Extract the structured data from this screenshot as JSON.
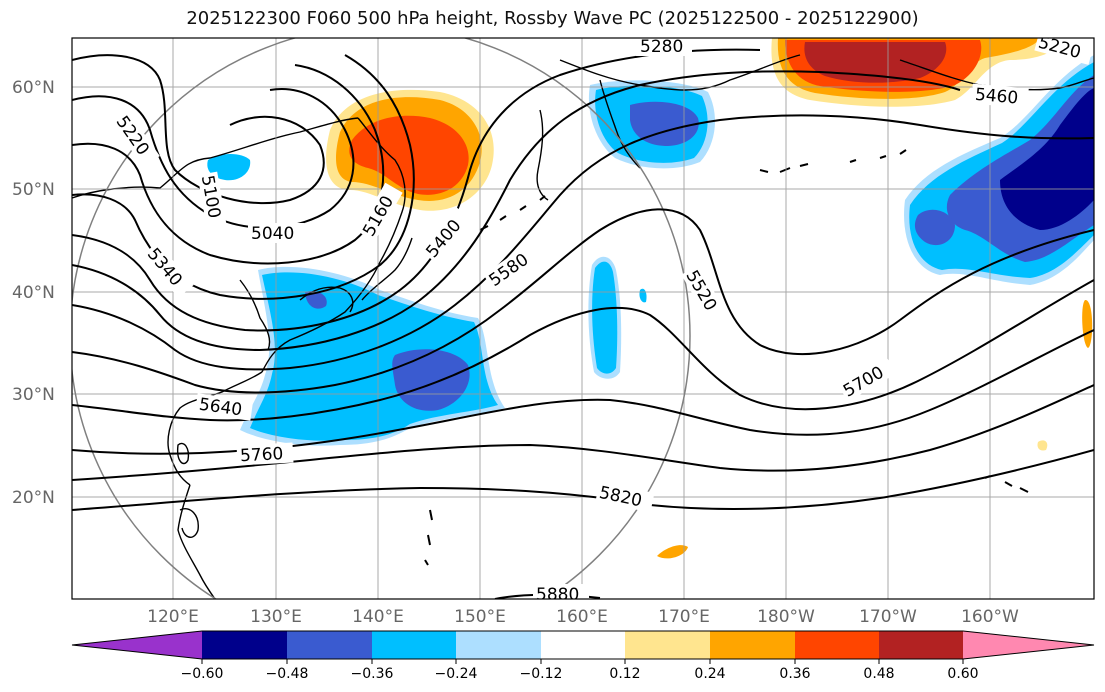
{
  "title": "2025122300 F060 500 hPa height, Rossby Wave PC (2025122500 - 2025122900)",
  "lat_labels": [
    "20°N",
    "30°N",
    "40°N",
    "50°N",
    "60°N"
  ],
  "lon_labels": [
    "120°E",
    "130°E",
    "140°E",
    "150°E",
    "160°E",
    "170°E",
    "180°W",
    "170°W",
    "160°W"
  ],
  "contour_labels": [
    "5280",
    "5220",
    "5220",
    "5460",
    "5100",
    "5040",
    "5160",
    "5400",
    "5340",
    "5580",
    "5520",
    "5640",
    "5700",
    "5760",
    "5820",
    "5880"
  ],
  "colorbar": {
    "tick_labels": [
      "−0.60",
      "−0.48",
      "−0.36",
      "−0.24",
      "−0.12",
      "0.12",
      "0.24",
      "0.36",
      "0.48",
      "0.60"
    ],
    "colors": [
      "#9932CC",
      "#00008B",
      "#3A5BD0",
      "#00BFFF",
      "#ADDFFF",
      "#FFFFFF",
      "#FFE58F",
      "#FFA500",
      "#FF4500",
      "#B22222",
      "#FF88B0"
    ]
  },
  "shading_colors": {
    "neg_light": "#00BFFF",
    "neg_mid": "#3A5BD0",
    "neg_dark": "#00008B",
    "pos_light": "#FFE58F",
    "pos_mid": "#FFA500",
    "pos_strong": "#FF4500",
    "pos_dark": "#B22222"
  }
}
